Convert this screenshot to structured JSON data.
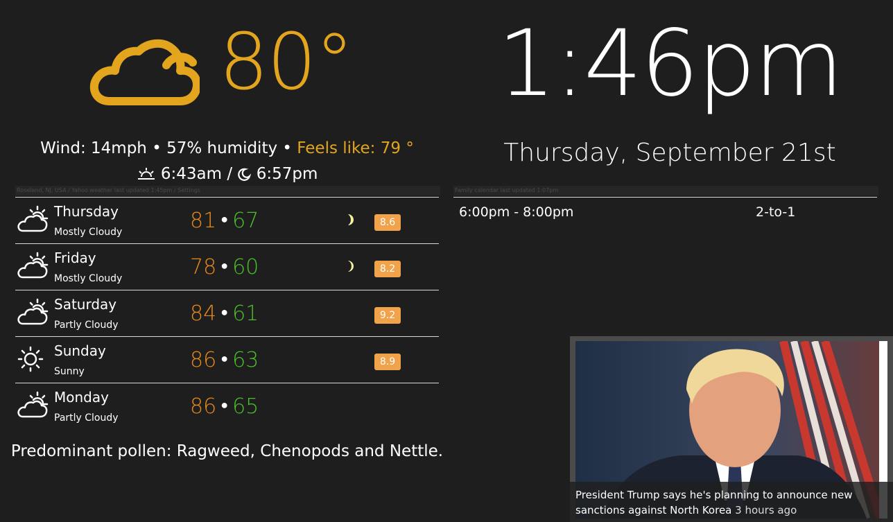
{
  "current": {
    "icon": "cloud-icon",
    "temperature": "80°",
    "wind": "Wind: 14mph",
    "separator": "•",
    "humidity": "57% humidity",
    "feels_like": "Feels like: 79 °",
    "sunrise": "6:43am",
    "sun_sep": "/",
    "sunset": "6:57pm"
  },
  "status_left": "Roseland, NJ, USA / Yahoo weather last updated 1:45pm / Settings",
  "status_right": "Family calendar last updated 1:07pm",
  "forecast": [
    {
      "day": "Thursday",
      "condition": "Mostly Cloudy",
      "high": "81",
      "low": "67",
      "icon": "partly-cloudy-icon",
      "uv": "8.6"
    },
    {
      "day": "Friday",
      "condition": "Mostly Cloudy",
      "high": "78",
      "low": "60",
      "icon": "partly-cloudy-icon",
      "uv": "8.2"
    },
    {
      "day": "Saturday",
      "condition": "Partly Cloudy",
      "high": "84",
      "low": "61",
      "icon": "partly-cloudy-icon",
      "uv": "9.2"
    },
    {
      "day": "Sunday",
      "condition": "Sunny",
      "high": "86",
      "low": "63",
      "icon": "sun-icon",
      "uv": "8.9"
    },
    {
      "day": "Monday",
      "condition": "Partly Cloudy",
      "high": "86",
      "low": "65",
      "icon": "partly-cloudy-icon",
      "uv": ""
    }
  ],
  "pollen": "Predominant pollen: Ragweed, Chenopods and Nettle.",
  "clock": "1:46pm",
  "date": "Thursday, September 21st",
  "calendar": {
    "event_time": "6:00pm - 8:00pm",
    "event_title": "2-to-1"
  },
  "news": {
    "headline": "President Trump says he's planning to announce new sanctions against North Korea",
    "ago": "3 hours ago",
    "image": "news-photo"
  },
  "colors": {
    "background": "#1e1e1e",
    "accent": "#e3a51d",
    "high_temp": "#e88a1a",
    "low_temp": "#4bbf2a",
    "uv_badge": "#f0a34a"
  }
}
